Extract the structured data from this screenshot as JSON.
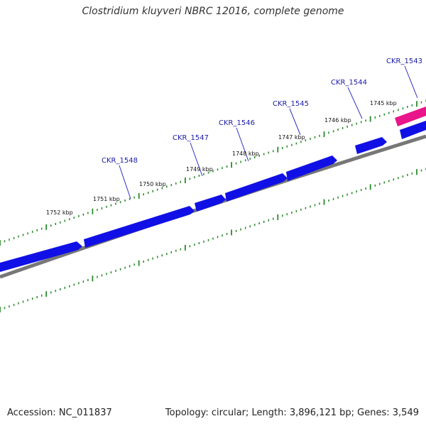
{
  "title": "Clostridium kluyveri NBRC 12016, complete genome",
  "footer": {
    "accession": "Accession: NC_011837",
    "summary": "Topology: circular; Length: 3,896,121 bp; Genes: 3,549"
  },
  "colors": {
    "gene_forward": "#1010e6",
    "gene_highlight": "#e8168a",
    "backbone": "#777777",
    "ticks": "#2a8a2a",
    "gene_label": "#1a1aa6",
    "label_line": "#3030c0"
  },
  "kbp_labels": [
    "1745 kbp",
    "1746 kbp",
    "1747 kbp",
    "1748 kbp",
    "1749 kbp",
    "1750 kbp",
    "1751 kbp",
    "1752 kbp"
  ],
  "gene_labels": [
    "CKR_1543",
    "CKR_1544",
    "CKR_1545",
    "CKR_1546",
    "CKR_1547",
    "CKR_1548"
  ]
}
